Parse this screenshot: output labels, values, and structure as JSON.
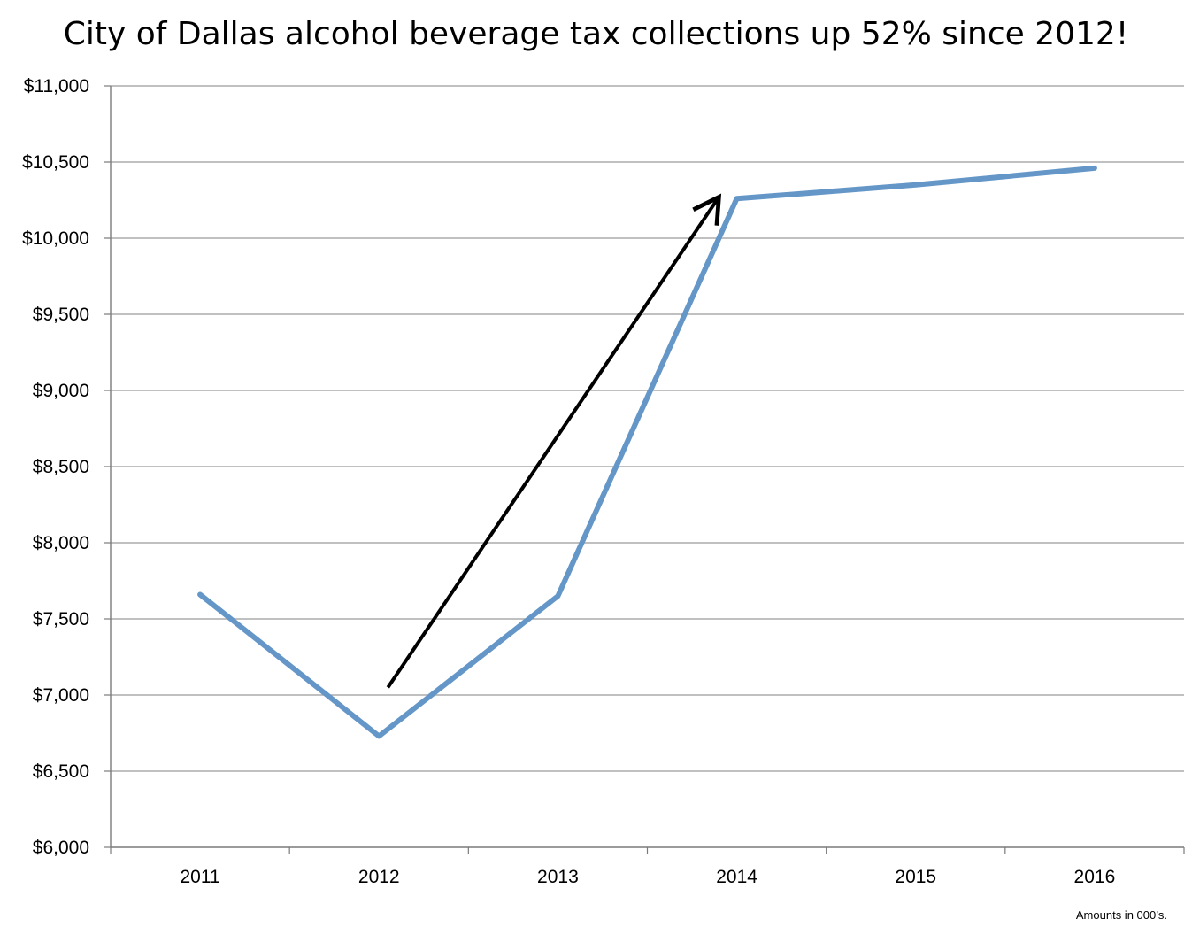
{
  "chart_data": {
    "type": "line",
    "title": "City of Dallas alcohol beverage tax collections up 52% since 2012!",
    "categories": [
      "2011",
      "2012",
      "2013",
      "2014",
      "2015",
      "2016"
    ],
    "series": [
      {
        "values": [
          7660,
          6730,
          7650,
          10260,
          10350,
          10460
        ],
        "color": "#6497c8"
      }
    ],
    "ylim": [
      6000,
      11000
    ],
    "yticks": [
      6000,
      6500,
      7000,
      7500,
      8000,
      8500,
      9000,
      9500,
      10000,
      10500,
      11000
    ],
    "ytick_labels": [
      "$6,000",
      "$6,500",
      "$7,000",
      "$7,500",
      "$8,000",
      "$8,500",
      "$9,000",
      "$9,500",
      "$10,000",
      "$10,500",
      "$11,000"
    ],
    "grid": true,
    "annotation": {
      "type": "arrow",
      "from": {
        "x": 1.05,
        "y": 7050
      },
      "to": {
        "x": 2.9,
        "y": 10270
      },
      "color": "#000000"
    },
    "footnote": "Amounts in 000’s."
  }
}
